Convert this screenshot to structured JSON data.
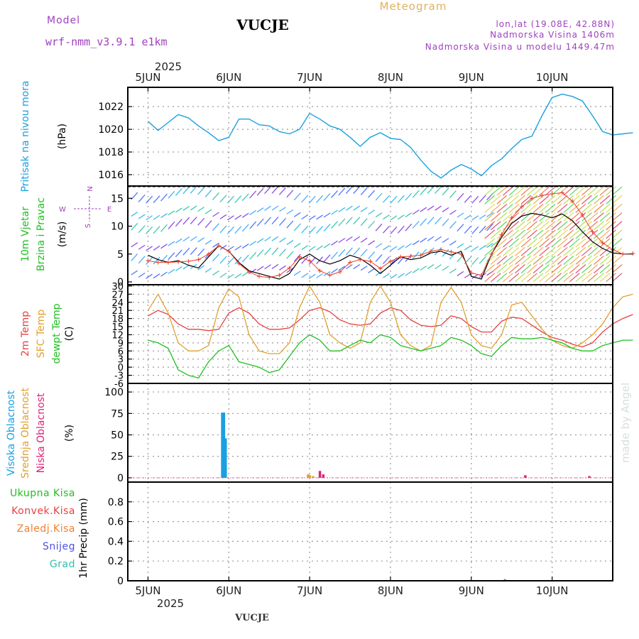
{
  "header": {
    "model_label": "Model",
    "model_name": "wrf-nmm_v3.9.1  e1km",
    "station": "VUCJE",
    "chart_type_title": "Meteogram",
    "coords": "lon,lat (19.08E, 42.88N)",
    "elevation": "Nadmorska Visina 1406m",
    "model_elevation": "Nadmorska Visina u modelu 1449.47m",
    "year": "2025",
    "footer_station": "VUCJE",
    "watermark": "made by Angel"
  },
  "colors": {
    "pressure": "#1aa0e0",
    "wind_speed": "#000000",
    "wind_gust": "#e8402a",
    "t2m": "#e84040",
    "sfc": "#e0a030",
    "dewpt": "#20c020",
    "cloud_high": "#1aa0e0",
    "cloud_mid": "#e0a030",
    "cloud_low": "#e0207a",
    "rain_total": "#20c020",
    "rain_conv": "#e84040",
    "rain_frozen": "#f08030",
    "snow": "#5050e0",
    "graupel": "#30c0b0",
    "purple_text": "#a040c0"
  },
  "chart_data": [
    {
      "type": "line",
      "panel": "pressure",
      "ylabel": [
        "Pritisak na nivou mora",
        "(hPa)"
      ],
      "ylim": [
        1015,
        1023.7
      ],
      "yticks": [
        1016,
        1018,
        1020,
        1022
      ],
      "x_days": [
        "5JUN",
        "6JUN",
        "7JUN",
        "8JUN",
        "9JUN",
        "10JUN"
      ],
      "series": [
        {
          "x_hours": [
            0,
            3,
            6,
            9,
            12,
            15,
            18,
            21,
            24,
            27,
            30,
            33,
            36,
            39,
            42,
            45,
            48,
            51,
            54,
            57,
            60,
            63,
            66,
            69,
            72,
            75,
            78,
            81,
            84,
            87,
            90,
            93,
            96,
            99,
            102,
            105,
            108,
            111,
            114,
            117,
            120,
            123,
            126,
            129,
            132,
            135,
            138,
            141,
            144
          ],
          "values": [
            1020.7,
            1019.9,
            1020.6,
            1021.3,
            1021.0,
            1020.3,
            1019.7,
            1019.0,
            1019.3,
            1020.9,
            1020.9,
            1020.4,
            1020.3,
            1019.8,
            1019.6,
            1020.0,
            1021.4,
            1020.9,
            1020.3,
            1020.0,
            1019.3,
            1018.5,
            1019.3,
            1019.7,
            1019.2,
            1019.1,
            1018.4,
            1017.3,
            1016.3,
            1015.7,
            1016.4,
            1016.9,
            1016.5,
            1015.9,
            1016.8,
            1017.4,
            1018.3,
            1019.1,
            1019.4,
            1021.2,
            1022.8,
            1023.1,
            1022.9,
            1022.5,
            1021.2,
            1019.8,
            1019.5,
            1019.6,
            1019.7
          ]
        }
      ]
    },
    {
      "type": "line",
      "panel": "wind",
      "ylabel": [
        "10m Vjetar",
        "Brzina i Pravac",
        "(m/s)"
      ],
      "ylim": [
        -0.5,
        17.2
      ],
      "yticks": [
        0,
        5,
        10,
        15
      ],
      "compass": {
        "n": "N",
        "w": "W",
        "e": "E",
        "s": "S"
      },
      "series": [
        {
          "name": "speed",
          "x_hours": [
            0,
            3,
            6,
            9,
            12,
            15,
            18,
            21,
            24,
            27,
            30,
            33,
            36,
            39,
            42,
            45,
            48,
            51,
            54,
            57,
            60,
            63,
            66,
            69,
            72,
            75,
            78,
            81,
            84,
            87,
            90,
            93,
            96,
            99,
            102,
            105,
            108,
            111,
            114,
            117,
            120,
            123,
            126,
            129,
            132,
            135,
            138,
            141,
            144
          ],
          "values": [
            4.8,
            4.0,
            3.5,
            3.8,
            3.0,
            2.5,
            4.5,
            6.5,
            5.5,
            3.5,
            2.0,
            1.5,
            1.0,
            0.5,
            1.5,
            4.0,
            5.0,
            3.8,
            3.2,
            3.8,
            4.8,
            4.2,
            3.0,
            1.5,
            3.0,
            4.5,
            4.0,
            4.3,
            5.2,
            5.5,
            4.8,
            5.5,
            1.0,
            0.5,
            5.0,
            8.0,
            10.5,
            11.8,
            12.3,
            12.0,
            11.5,
            12.2,
            11.0,
            9.0,
            7.2,
            6.0,
            5.2,
            5.0,
            5.0
          ]
        },
        {
          "name": "gust",
          "x_hours": [
            0,
            3,
            6,
            9,
            12,
            15,
            18,
            21,
            24,
            27,
            30,
            33,
            36,
            39,
            42,
            45,
            48,
            51,
            54,
            57,
            60,
            63,
            66,
            69,
            72,
            75,
            78,
            81,
            84,
            87,
            90,
            93,
            96,
            99,
            102,
            105,
            108,
            111,
            114,
            117,
            120,
            123,
            126,
            129,
            132,
            135,
            138,
            141,
            144
          ],
          "values": [
            3.8,
            3.5,
            3.5,
            3.6,
            3.7,
            4.0,
            5.0,
            6.5,
            5.5,
            3.3,
            1.8,
            1.0,
            0.8,
            1.2,
            2.5,
            4.5,
            3.8,
            2.0,
            1.2,
            1.8,
            3.5,
            4.0,
            3.7,
            2.4,
            3.7,
            4.5,
            4.6,
            4.8,
            5.5,
            5.8,
            5.4,
            5.0,
            1.6,
            1.2,
            5.0,
            8.5,
            11.5,
            13.5,
            15.0,
            15.5,
            15.8,
            16.0,
            14.5,
            12.0,
            9.0,
            7.0,
            5.8,
            5.0,
            5.1
          ]
        }
      ]
    },
    {
      "type": "line",
      "panel": "temperature",
      "ylabel": [
        "2m Temp",
        "SFC Temp",
        "dewpt Temp",
        "(C)"
      ],
      "ylim": [
        -6,
        30.5
      ],
      "yticks": [
        -6,
        -3,
        0,
        3,
        6,
        9,
        12,
        15,
        18,
        21,
        24,
        27,
        30
      ],
      "series": [
        {
          "name": "2m",
          "x_hours": [
            0,
            3,
            6,
            9,
            12,
            15,
            18,
            21,
            24,
            27,
            30,
            33,
            36,
            39,
            42,
            45,
            48,
            51,
            54,
            57,
            60,
            63,
            66,
            69,
            72,
            75,
            78,
            81,
            84,
            87,
            90,
            93,
            96,
            99,
            102,
            105,
            108,
            111,
            114,
            117,
            120,
            123,
            126,
            129,
            132,
            135,
            138,
            141,
            144
          ],
          "values": [
            19.0,
            21.0,
            19.5,
            16.0,
            14.0,
            14.0,
            13.5,
            14.0,
            20.0,
            22.0,
            20.0,
            16.0,
            14.0,
            14.0,
            14.5,
            17.5,
            21.0,
            22.0,
            20.5,
            17.5,
            16.0,
            15.5,
            16.0,
            20.0,
            22.0,
            21.0,
            17.5,
            15.5,
            15.0,
            15.5,
            19.0,
            18.0,
            15.0,
            13.0,
            13.0,
            17.0,
            18.5,
            18.0,
            15.5,
            13.0,
            11.0,
            10.0,
            8.5,
            7.5,
            9.0,
            13.0,
            16.0,
            18.0,
            19.5
          ]
        },
        {
          "name": "sfc",
          "x_hours": [
            0,
            3,
            6,
            9,
            12,
            15,
            18,
            21,
            24,
            27,
            30,
            33,
            36,
            39,
            42,
            45,
            48,
            51,
            54,
            57,
            60,
            63,
            66,
            69,
            72,
            75,
            78,
            81,
            84,
            87,
            90,
            93,
            96,
            99,
            102,
            105,
            108,
            111,
            114,
            117,
            120,
            123,
            126,
            129,
            132,
            135,
            138,
            141,
            144
          ],
          "values": [
            21.0,
            27.0,
            20.0,
            9.0,
            6.0,
            6.0,
            8.0,
            22.0,
            29.0,
            26.0,
            12.0,
            6.0,
            5.0,
            5.0,
            9.0,
            22.0,
            30.0,
            24.0,
            12.0,
            9.0,
            7.0,
            9.0,
            24.0,
            30.0,
            24.0,
            12.0,
            8.0,
            6.0,
            8.0,
            24.0,
            29.5,
            24.0,
            12.0,
            8.0,
            7.0,
            12.0,
            23.0,
            24.0,
            19.0,
            14.0,
            10.0,
            8.0,
            7.0,
            9.0,
            12.0,
            16.0,
            22.0,
            26.0,
            27.0
          ]
        },
        {
          "name": "dewpt",
          "x_hours": [
            0,
            3,
            6,
            9,
            12,
            15,
            18,
            21,
            24,
            27,
            30,
            33,
            36,
            39,
            42,
            45,
            48,
            51,
            54,
            57,
            60,
            63,
            66,
            69,
            72,
            75,
            78,
            81,
            84,
            87,
            90,
            93,
            96,
            99,
            102,
            105,
            108,
            111,
            114,
            117,
            120,
            123,
            126,
            129,
            132,
            135,
            138,
            141,
            144
          ],
          "values": [
            10.0,
            9.0,
            7.0,
            -1.0,
            -3.0,
            -4.0,
            2.0,
            6.0,
            8.0,
            2.0,
            1.0,
            0.0,
            -2.0,
            -1.0,
            4.0,
            9.0,
            12.0,
            10.0,
            6.0,
            6.0,
            8.0,
            10.0,
            9.0,
            12.0,
            11.0,
            8.0,
            7.0,
            6.0,
            7.0,
            8.0,
            11.0,
            10.0,
            8.0,
            5.0,
            4.0,
            8.0,
            11.0,
            10.5,
            10.5,
            11.0,
            10.0,
            9.0,
            7.0,
            6.0,
            6.0,
            8.0,
            9.0,
            10.0,
            10.0
          ]
        }
      ]
    },
    {
      "type": "bar",
      "panel": "cloud",
      "ylabel": [
        "Visoka Oblacnost",
        "Srednja Oblacnost",
        "Niska Oblacnost",
        "(%)"
      ],
      "ylim": [
        -5,
        110
      ],
      "yticks": [
        0,
        25,
        50,
        75,
        100
      ],
      "series": [
        {
          "name": "high",
          "x_hours": [
            22.0,
            22.5,
            23.0
          ],
          "values": [
            76,
            76,
            46
          ]
        },
        {
          "name": "mid",
          "x_hours": [
            47.5,
            48.0,
            49.0
          ],
          "values": [
            4,
            3,
            2
          ]
        },
        {
          "name": "low",
          "x_hours": [
            51.0,
            52.0,
            112.0,
            131.0
          ],
          "values": [
            8,
            4,
            3,
            2
          ]
        }
      ]
    },
    {
      "type": "bar",
      "panel": "precip",
      "ylabel": [
        "1hr Precip (mm)"
      ],
      "legend": [
        "Ukupna Kisa",
        "Konvek.Kisa",
        "Zaledj.Kisa",
        "Snijeg",
        "Grad"
      ],
      "ylim": [
        0,
        1.0
      ],
      "yticks": [
        0,
        0.2,
        0.4,
        0.6,
        0.8
      ],
      "series": [
        {
          "name": "total",
          "x_hours": [
            106
          ],
          "values": [
            0.01
          ]
        }
      ]
    }
  ]
}
